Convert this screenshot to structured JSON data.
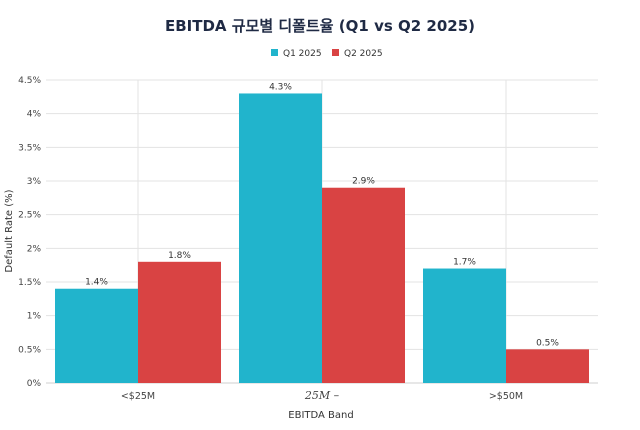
{
  "chart_data": {
    "type": "bar",
    "title": "EBITDA 규모별 디폴트율 (Q1 vs Q2 2025)",
    "xlabel": "EBITDA Band",
    "ylabel": "Default Rate (%)",
    "categories": [
      "<$25M",
      "25M –",
      ">$50M"
    ],
    "series": [
      {
        "name": "Q1 2025",
        "color": "#21b4cc",
        "values": [
          1.4,
          4.3,
          1.7
        ],
        "labels": [
          "1.4%",
          "4.3%",
          "1.7%"
        ]
      },
      {
        "name": "Q2 2025",
        "color": "#d94343",
        "values": [
          1.8,
          2.9,
          0.5
        ],
        "labels": [
          "1.8%",
          "2.9%",
          "0.5%"
        ]
      }
    ],
    "ylim": [
      0,
      4.5
    ],
    "yticks": [
      0,
      0.5,
      1,
      1.5,
      2,
      2.5,
      3,
      3.5,
      4,
      4.5
    ],
    "ytick_labels": [
      "0%",
      "0.5%",
      "1%",
      "1.5%",
      "2%",
      "2.5%",
      "3%",
      "3.5%",
      "4%",
      "4.5%"
    ],
    "grid": true,
    "legend_position": "top-center"
  }
}
